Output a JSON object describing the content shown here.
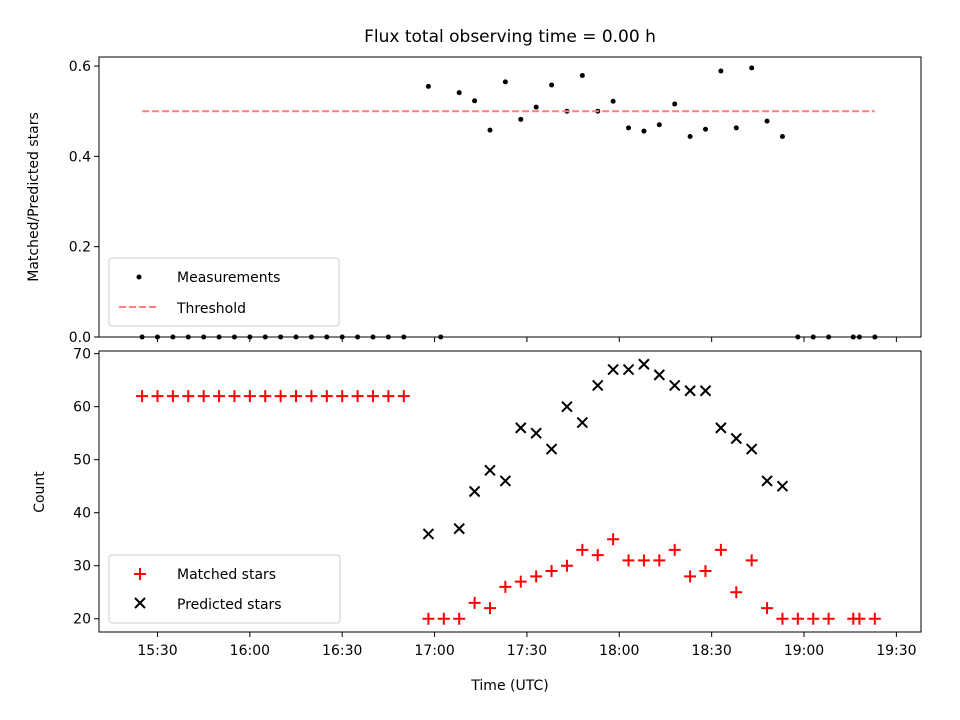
{
  "chart_data": [
    {
      "type": "scatter",
      "title": "Flux total observing time = 0.00 h",
      "xlabel": "",
      "ylabel": "Matched/Predicted stars",
      "ylim": [
        0,
        0.62
      ],
      "yticks": [
        "0.0",
        "0.2",
        "0.4",
        "0.6"
      ],
      "xlim": [
        "15:11",
        "19:38"
      ],
      "legend_position": "lower-left",
      "series": [
        {
          "name": "Measurements",
          "marker": "dot",
          "color": "#000000",
          "points": [
            {
              "x": "15:25",
              "y": 0
            },
            {
              "x": "15:30",
              "y": 0
            },
            {
              "x": "15:35",
              "y": 0
            },
            {
              "x": "15:40",
              "y": 0
            },
            {
              "x": "15:45",
              "y": 0
            },
            {
              "x": "15:50",
              "y": 0
            },
            {
              "x": "15:55",
              "y": 0
            },
            {
              "x": "16:00",
              "y": 0
            },
            {
              "x": "16:05",
              "y": 0
            },
            {
              "x": "16:10",
              "y": 0
            },
            {
              "x": "16:15",
              "y": 0
            },
            {
              "x": "16:20",
              "y": 0
            },
            {
              "x": "16:25",
              "y": 0
            },
            {
              "x": "16:30",
              "y": 0
            },
            {
              "x": "16:35",
              "y": 0
            },
            {
              "x": "16:40",
              "y": 0
            },
            {
              "x": "16:45",
              "y": 0
            },
            {
              "x": "16:50",
              "y": 0
            },
            {
              "x": "16:58",
              "y": 0.555
            },
            {
              "x": "17:02",
              "y": 0
            },
            {
              "x": "17:08",
              "y": 0.541
            },
            {
              "x": "17:13",
              "y": 0.523
            },
            {
              "x": "17:18",
              "y": 0.458
            },
            {
              "x": "17:23",
              "y": 0.565
            },
            {
              "x": "17:28",
              "y": 0.482
            },
            {
              "x": "17:33",
              "y": 0.509
            },
            {
              "x": "17:38",
              "y": 0.558
            },
            {
              "x": "17:43",
              "y": 0.5
            },
            {
              "x": "17:48",
              "y": 0.579
            },
            {
              "x": "17:53",
              "y": 0.5
            },
            {
              "x": "17:58",
              "y": 0.522
            },
            {
              "x": "18:03",
              "y": 0.463
            },
            {
              "x": "18:08",
              "y": 0.456
            },
            {
              "x": "18:13",
              "y": 0.47
            },
            {
              "x": "18:18",
              "y": 0.516
            },
            {
              "x": "18:23",
              "y": 0.444
            },
            {
              "x": "18:28",
              "y": 0.46
            },
            {
              "x": "18:33",
              "y": 0.589
            },
            {
              "x": "18:38",
              "y": 0.463
            },
            {
              "x": "18:43",
              "y": 0.596
            },
            {
              "x": "18:48",
              "y": 0.478
            },
            {
              "x": "18:53",
              "y": 0.444
            },
            {
              "x": "18:58",
              "y": 0
            },
            {
              "x": "19:03",
              "y": 0
            },
            {
              "x": "19:08",
              "y": 0
            },
            {
              "x": "19:16",
              "y": 0
            },
            {
              "x": "19:18",
              "y": 0
            },
            {
              "x": "19:23",
              "y": 0
            }
          ]
        },
        {
          "name": "Threshold",
          "marker": "dashed-line",
          "color": "#ff7f7f",
          "points": [
            {
              "x": "15:25",
              "y": 0.5
            },
            {
              "x": "19:23",
              "y": 0.5
            }
          ]
        }
      ]
    },
    {
      "type": "scatter",
      "title": "",
      "xlabel": "Time (UTC)",
      "ylabel": "Count",
      "ylim": [
        17.5,
        70.5
      ],
      "yticks": [
        "20",
        "30",
        "40",
        "50",
        "60",
        "70"
      ],
      "xlim": [
        "15:11",
        "19:38"
      ],
      "xticks": [
        "15:30",
        "16:00",
        "16:30",
        "17:00",
        "17:30",
        "18:00",
        "18:30",
        "19:00",
        "19:30"
      ],
      "legend_position": "lower-left",
      "series": [
        {
          "name": "Matched stars",
          "marker": "plus",
          "color": "#ff0000",
          "points": [
            {
              "x": "15:25",
              "y": 62
            },
            {
              "x": "15:30",
              "y": 62
            },
            {
              "x": "15:35",
              "y": 62
            },
            {
              "x": "15:40",
              "y": 62
            },
            {
              "x": "15:45",
              "y": 62
            },
            {
              "x": "15:50",
              "y": 62
            },
            {
              "x": "15:55",
              "y": 62
            },
            {
              "x": "16:00",
              "y": 62
            },
            {
              "x": "16:05",
              "y": 62
            },
            {
              "x": "16:10",
              "y": 62
            },
            {
              "x": "16:15",
              "y": 62
            },
            {
              "x": "16:20",
              "y": 62
            },
            {
              "x": "16:25",
              "y": 62
            },
            {
              "x": "16:30",
              "y": 62
            },
            {
              "x": "16:35",
              "y": 62
            },
            {
              "x": "16:40",
              "y": 62
            },
            {
              "x": "16:45",
              "y": 62
            },
            {
              "x": "16:50",
              "y": 62
            },
            {
              "x": "16:58",
              "y": 20
            },
            {
              "x": "17:03",
              "y": 20
            },
            {
              "x": "17:08",
              "y": 20
            },
            {
              "x": "17:13",
              "y": 23
            },
            {
              "x": "17:18",
              "y": 22
            },
            {
              "x": "17:23",
              "y": 26
            },
            {
              "x": "17:28",
              "y": 27
            },
            {
              "x": "17:33",
              "y": 28
            },
            {
              "x": "17:38",
              "y": 29
            },
            {
              "x": "17:43",
              "y": 30
            },
            {
              "x": "17:48",
              "y": 33
            },
            {
              "x": "17:53",
              "y": 32
            },
            {
              "x": "17:58",
              "y": 35
            },
            {
              "x": "18:03",
              "y": 31
            },
            {
              "x": "18:08",
              "y": 31
            },
            {
              "x": "18:13",
              "y": 31
            },
            {
              "x": "18:18",
              "y": 33
            },
            {
              "x": "18:23",
              "y": 28
            },
            {
              "x": "18:28",
              "y": 29
            },
            {
              "x": "18:33",
              "y": 33
            },
            {
              "x": "18:38",
              "y": 25
            },
            {
              "x": "18:43",
              "y": 31
            },
            {
              "x": "18:48",
              "y": 22
            },
            {
              "x": "18:53",
              "y": 20
            },
            {
              "x": "18:58",
              "y": 20
            },
            {
              "x": "19:03",
              "y": 20
            },
            {
              "x": "19:08",
              "y": 20
            },
            {
              "x": "19:16",
              "y": 20
            },
            {
              "x": "19:18",
              "y": 20
            },
            {
              "x": "19:23",
              "y": 20
            }
          ]
        },
        {
          "name": "Predicted stars",
          "marker": "x",
          "color": "#000000",
          "points": [
            {
              "x": "16:58",
              "y": 36
            },
            {
              "x": "17:08",
              "y": 37
            },
            {
              "x": "17:13",
              "y": 44
            },
            {
              "x": "17:18",
              "y": 48
            },
            {
              "x": "17:23",
              "y": 46
            },
            {
              "x": "17:28",
              "y": 56
            },
            {
              "x": "17:33",
              "y": 55
            },
            {
              "x": "17:38",
              "y": 52
            },
            {
              "x": "17:43",
              "y": 60
            },
            {
              "x": "17:48",
              "y": 57
            },
            {
              "x": "17:53",
              "y": 64
            },
            {
              "x": "17:58",
              "y": 67
            },
            {
              "x": "18:03",
              "y": 67
            },
            {
              "x": "18:08",
              "y": 68
            },
            {
              "x": "18:13",
              "y": 66
            },
            {
              "x": "18:18",
              "y": 64
            },
            {
              "x": "18:23",
              "y": 63
            },
            {
              "x": "18:28",
              "y": 63
            },
            {
              "x": "18:33",
              "y": 56
            },
            {
              "x": "18:38",
              "y": 54
            },
            {
              "x": "18:43",
              "y": 52
            },
            {
              "x": "18:48",
              "y": 46
            },
            {
              "x": "18:53",
              "y": 45
            }
          ]
        }
      ]
    }
  ]
}
